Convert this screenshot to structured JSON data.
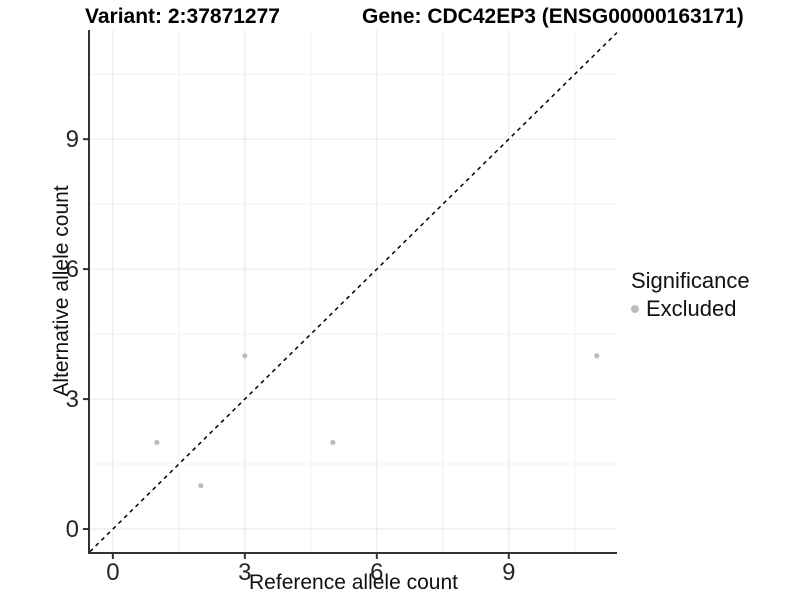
{
  "titles": {
    "variant": "Variant: 2:37871277",
    "gene": "Gene: CDC42EP3 (ENSG00000163171)"
  },
  "chart_data": {
    "type": "scatter",
    "title_left": "Variant: 2:37871277",
    "title_right": "Gene: CDC42EP3 (ENSG00000163171)",
    "xlabel": "Reference allele count",
    "ylabel": "Alternative allele count",
    "xlim": [
      -0.52,
      11.46
    ],
    "ylim": [
      -0.53,
      11.52
    ],
    "x_ticks": [
      0,
      3,
      6,
      9
    ],
    "y_ticks": [
      0,
      3,
      6,
      9
    ],
    "x_minor_ticks": [
      1.5,
      4.5,
      7.5,
      10.5
    ],
    "y_minor_ticks": [
      1.5,
      4.5,
      7.5,
      10.5
    ],
    "grid": true,
    "identity_line": {
      "equation": "y = x",
      "style": "dashed",
      "color": "#000000"
    },
    "series": [
      {
        "name": "Excluded",
        "color": "#bdbdbd",
        "points": [
          [
            1,
            2
          ],
          [
            2,
            1
          ],
          [
            3,
            4
          ],
          [
            5,
            2
          ],
          [
            11,
            4
          ]
        ]
      }
    ],
    "legend": {
      "title": "Significance",
      "position": "right",
      "items": [
        {
          "label": "Excluded",
          "color": "#bdbdbd"
        }
      ]
    }
  },
  "colors": {
    "background": "#ffffff",
    "grid_major": "#e6e6e6",
    "grid_minor": "#f2f2f2",
    "axis_line": "#333333",
    "tick_label": "#262626",
    "point": "#bdbdbd",
    "identity_line": "#000000"
  }
}
